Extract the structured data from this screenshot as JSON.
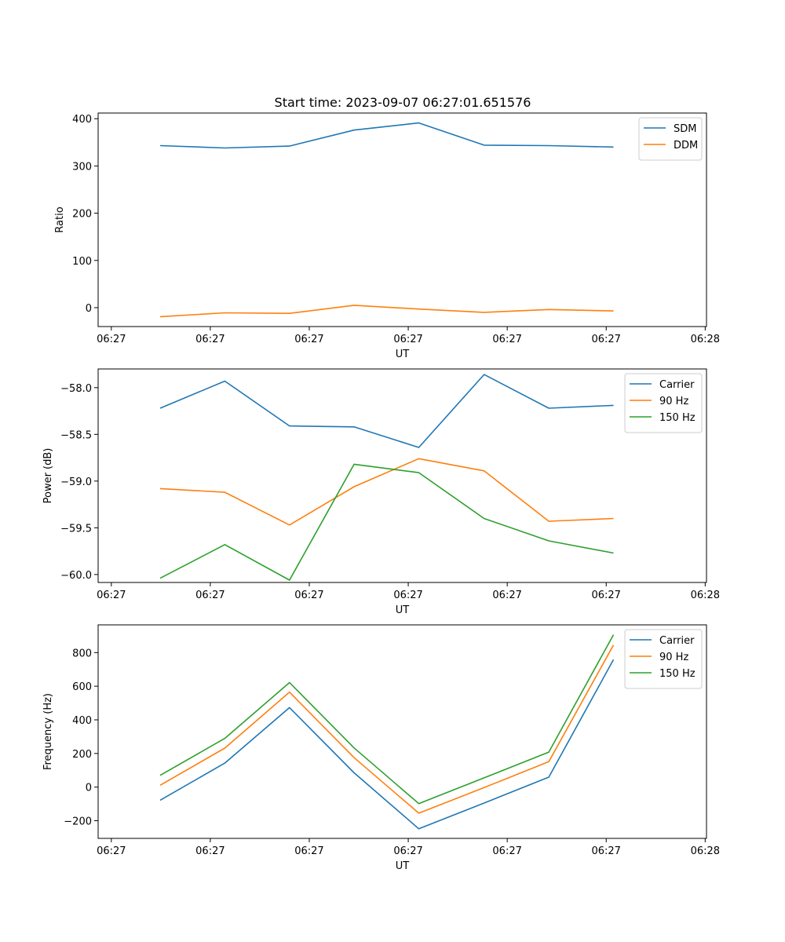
{
  "figure_title": "Start time: 2023-09-07 06:27:01.651576",
  "colors": {
    "c0": "#1f77b4",
    "c1": "#ff7f0e",
    "c2": "#2ca02c"
  },
  "chart_data": [
    {
      "type": "line",
      "title": "Start time: 2023-09-07 06:27:01.651576",
      "xlabel": "UT",
      "ylabel": "Ratio",
      "x_tick_labels": [
        "06:27",
        "06:27",
        "06:27",
        "06:27",
        "06:27",
        "06:27",
        "06:28"
      ],
      "x_tick_pos": [
        0,
        1.5,
        3,
        4.5,
        6,
        7.5,
        9
      ],
      "xlim": [
        -0.2,
        9.02
      ],
      "ylim": [
        -40,
        412
      ],
      "yticks": [
        0,
        100,
        200,
        300,
        400
      ],
      "ytick_labels": [
        "0",
        "100",
        "200",
        "300",
        "400"
      ],
      "legend_position": "top-right",
      "x": [
        0.74,
        1.72,
        2.7,
        3.68,
        4.66,
        5.65,
        6.63,
        7.61
      ],
      "series": [
        {
          "name": "SDM",
          "color": "#1f77b4",
          "values": [
            343,
            338,
            342,
            376,
            391,
            344,
            343,
            340
          ]
        },
        {
          "name": "DDM",
          "color": "#ff7f0e",
          "values": [
            -19,
            -11,
            -12,
            5,
            -3,
            -10,
            -4,
            -7
          ]
        }
      ]
    },
    {
      "type": "line",
      "title": "",
      "xlabel": "UT",
      "ylabel": "Power (dB)",
      "x_tick_labels": [
        "06:27",
        "06:27",
        "06:27",
        "06:27",
        "06:27",
        "06:27",
        "06:28"
      ],
      "x_tick_pos": [
        0,
        1.5,
        3,
        4.5,
        6,
        7.5,
        9
      ],
      "xlim": [
        -0.2,
        9.02
      ],
      "ylim": [
        -60.085,
        -57.8
      ],
      "yticks": [
        -58.0,
        -58.5,
        -59.0,
        -59.5,
        -60.0
      ],
      "ytick_labels": [
        "−58.0",
        "−58.5",
        "−59.0",
        "−59.5",
        "−60.0"
      ],
      "legend_position": "top-right",
      "x": [
        0.74,
        1.72,
        2.7,
        3.68,
        4.66,
        5.65,
        6.63,
        7.61
      ],
      "series": [
        {
          "name": "Carrier",
          "color": "#1f77b4",
          "values": [
            -58.22,
            -57.93,
            -58.41,
            -58.42,
            -58.64,
            -57.86,
            -58.22,
            -58.19
          ]
        },
        {
          "name": "90 Hz",
          "color": "#ff7f0e",
          "values": [
            -59.08,
            -59.12,
            -59.47,
            -59.06,
            -58.76,
            -58.89,
            -59.43,
            -59.4
          ]
        },
        {
          "name": "150 Hz",
          "color": "#2ca02c",
          "values": [
            -60.04,
            -59.68,
            -60.06,
            -58.82,
            -58.91,
            -59.4,
            -59.64,
            -59.77
          ]
        }
      ]
    },
    {
      "type": "line",
      "title": "",
      "xlabel": "UT",
      "ylabel": "Frequency (Hz)",
      "x_tick_labels": [
        "06:27",
        "06:27",
        "06:27",
        "06:27",
        "06:27",
        "06:27",
        "06:28"
      ],
      "x_tick_pos": [
        0,
        1.5,
        3,
        4.5,
        6,
        7.5,
        9
      ],
      "xlim": [
        -0.2,
        9.02
      ],
      "ylim": [
        -305,
        965
      ],
      "yticks": [
        -200,
        0,
        200,
        400,
        600,
        800
      ],
      "ytick_labels": [
        "−200",
        "0",
        "200",
        "400",
        "600",
        "800"
      ],
      "legend_position": "top-right",
      "x": [
        0.74,
        1.72,
        2.7,
        3.68,
        4.66,
        5.65,
        6.63,
        7.61
      ],
      "series": [
        {
          "name": "Carrier",
          "color": "#1f77b4",
          "values": [
            -78,
            143,
            473,
            85,
            -248,
            -95,
            59,
            758
          ]
        },
        {
          "name": "90 Hz",
          "color": "#ff7f0e",
          "values": [
            11,
            232,
            565,
            175,
            -155,
            -3,
            151,
            845
          ]
        },
        {
          "name": "150 Hz",
          "color": "#2ca02c",
          "values": [
            70,
            290,
            622,
            233,
            -98,
            55,
            208,
            906
          ]
        }
      ]
    }
  ]
}
